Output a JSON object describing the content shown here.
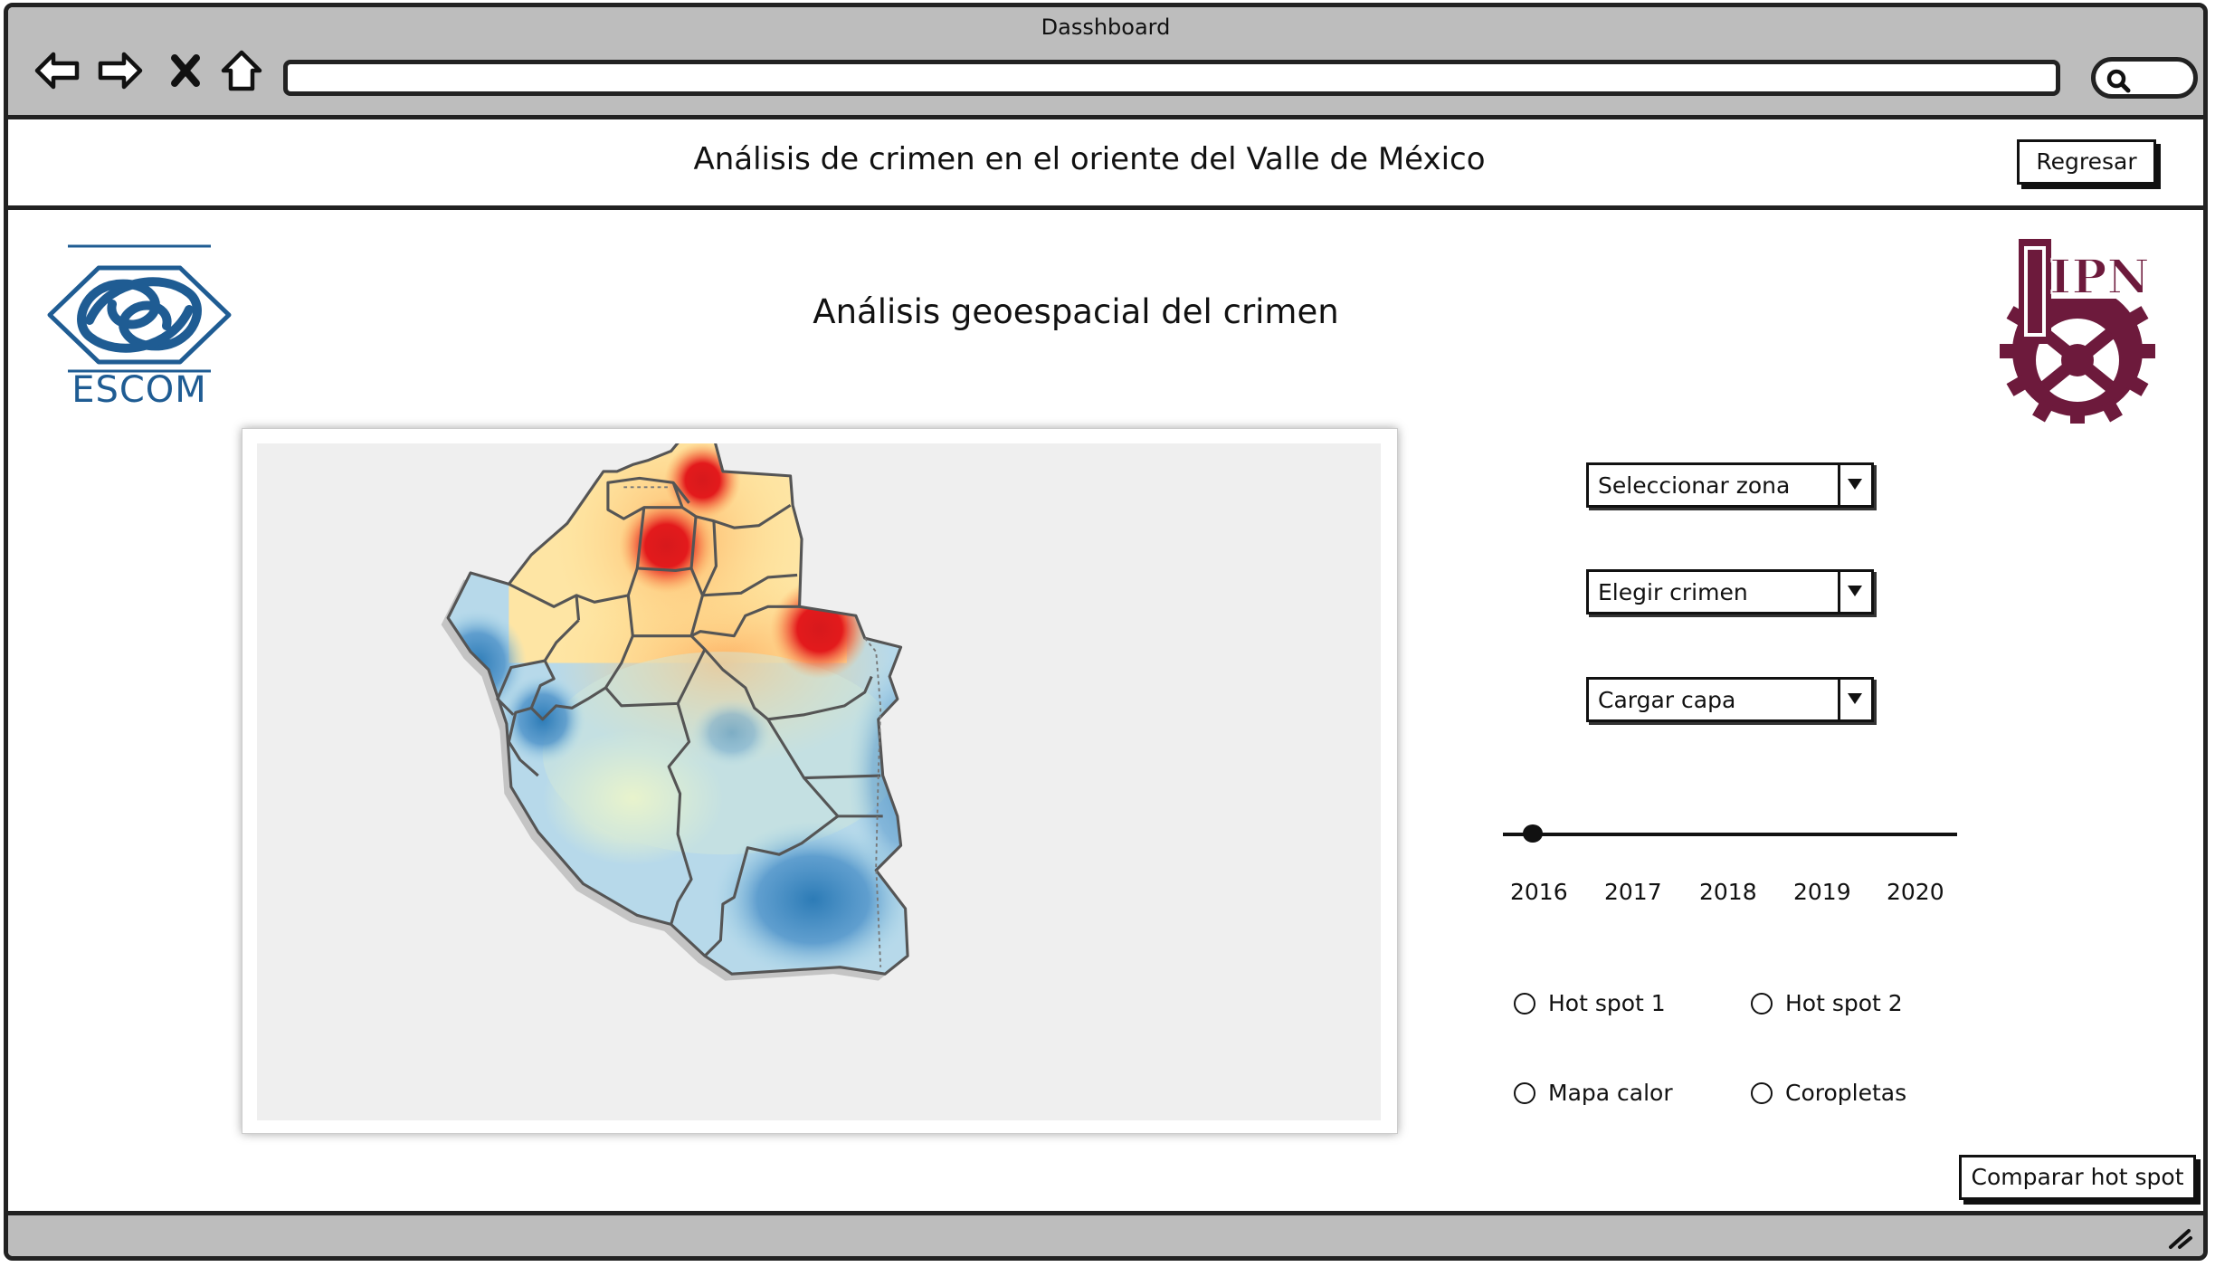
{
  "window": {
    "title": "Dasshboard"
  },
  "header": {
    "title": "Análisis de crimen en el oriente del  Valle de México",
    "back_button": "Regresar"
  },
  "logos": {
    "left": "ESCOM",
    "right": "IPN"
  },
  "main": {
    "section_title": "Análisis geoespacial del crimen"
  },
  "controls": {
    "zone_select": "Seleccionar zona",
    "crime_select": "Elegir crimen",
    "layer_select": "Cargar capa",
    "years": [
      "2016",
      "2017",
      "2018",
      "2019",
      "2020"
    ],
    "selected_year": "2016",
    "options": [
      {
        "label": "Hot spot 1",
        "checked": false
      },
      {
        "label": "Hot spot 2",
        "checked": false
      },
      {
        "label": "Mapa calor",
        "checked": false
      },
      {
        "label": "Coropletas",
        "checked": false
      }
    ],
    "compare_button": "Comparar hot spot"
  },
  "icons": {
    "back": "arrow-left-icon",
    "forward": "arrow-right-icon",
    "stop": "close-icon",
    "home": "home-icon",
    "search": "search-icon",
    "dropdown": "chevron-down-icon",
    "resize": "resize-grip-icon"
  },
  "colors": {
    "chrome": "#bdbdbd",
    "escom_blue": "#1f5c93",
    "ipn_maroon": "#6d1a3c",
    "heat_hot": "#e31a1c",
    "heat_cold": "#2c7bb6"
  }
}
